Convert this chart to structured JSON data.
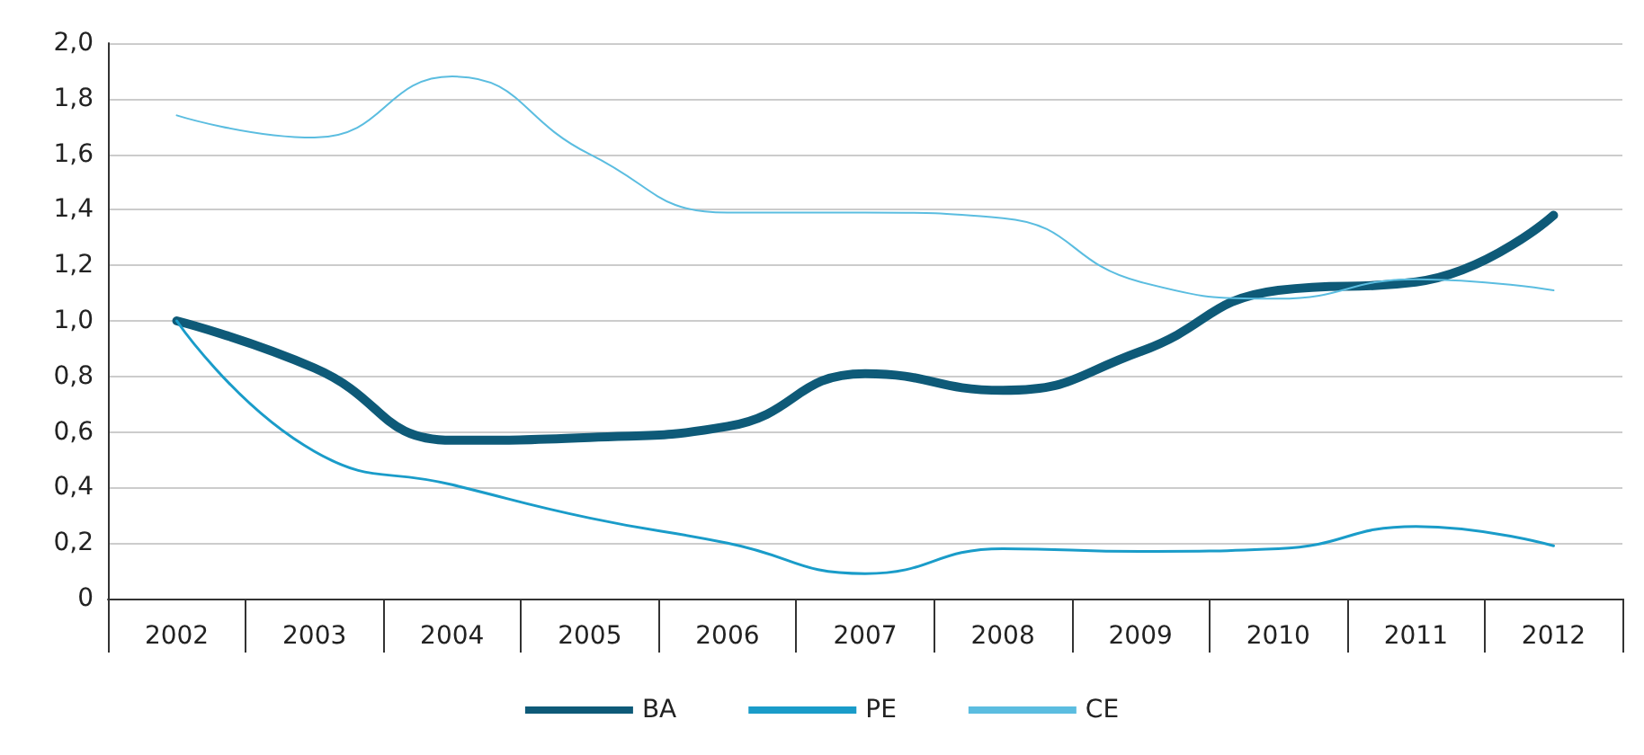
{
  "chart_data": {
    "type": "line",
    "categories": [
      "2002",
      "2003",
      "2004",
      "2005",
      "2006",
      "2007",
      "2008",
      "2009",
      "2010",
      "2011",
      "2012"
    ],
    "series": [
      {
        "name": "BA",
        "color": "#0e5a78",
        "values": [
          1.0,
          0.83,
          0.57,
          0.58,
          0.62,
          0.81,
          0.75,
          0.89,
          1.11,
          1.14,
          1.38
        ]
      },
      {
        "name": "PE",
        "color": "#1a9cc9",
        "values": [
          1.0,
          0.53,
          0.41,
          0.29,
          0.2,
          0.09,
          0.18,
          0.17,
          0.18,
          0.26,
          0.19
        ]
      },
      {
        "name": "CE",
        "color": "#5bbde0",
        "values": [
          1.74,
          1.66,
          1.88,
          1.6,
          1.39,
          1.39,
          1.37,
          1.14,
          1.08,
          1.15,
          1.11
        ]
      }
    ],
    "ylim": [
      0,
      2
    ],
    "yticks": [
      0,
      {
        "value": 0.2,
        "label": "0,2"
      },
      {
        "value": 0.4,
        "label": "0,4"
      },
      {
        "value": 0.6,
        "label": "0,6"
      },
      {
        "value": 0.8,
        "label": "0,8"
      },
      {
        "value": 1,
        "label": "1,0"
      },
      {
        "value": 1.2,
        "label": "1,2"
      },
      {
        "value": 1.4,
        "label": "1,4"
      },
      {
        "value": 1.6,
        "label": "1,6"
      },
      {
        "value": 1.8,
        "label": "1,8"
      },
      {
        "value": 2,
        "label": "2,0"
      }
    ],
    "grid": "y",
    "legend": "bottom",
    "marker": "none",
    "line_style": "solid"
  }
}
